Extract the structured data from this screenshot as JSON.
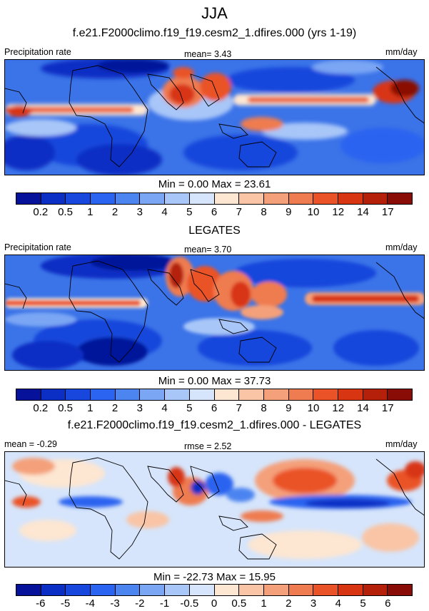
{
  "suptitle": "JJA",
  "panels": [
    {
      "title": "f.e21.F2000climo.f19_f19.cesm2_1.dfires.000 (yrs 1-19)",
      "left_label": "Precipitation rate",
      "center_label": "mean=   3.43",
      "right_label": "mm/day",
      "stats": "Min =   0.00 Max =  23.61"
    },
    {
      "title": "LEGATES",
      "left_label": "Precipitation rate",
      "center_label": "mean=   3.70",
      "right_label": "mm/day",
      "stats": "Min =   0.00 Max =  37.73"
    },
    {
      "title": "f.e21.F2000climo.f19_f19.cesm2_1.dfires.000 - LEGATES",
      "left_label": "mean = -0.29",
      "center_label": "rmse =   2.52",
      "right_label": "mm/day",
      "stats": "Min = -22.73 Max =  15.95"
    }
  ],
  "colorbar_abs": {
    "colors": [
      "#06129a",
      "#0b2ec4",
      "#1747dc",
      "#2a64f0",
      "#4c84f0",
      "#7aa6f4",
      "#a8c6f8",
      "#d6e5fb",
      "#fde6d2",
      "#f9c5a6",
      "#f4a07a",
      "#ef7b50",
      "#ea5228",
      "#d83612",
      "#b4200a",
      "#8a0c06"
    ],
    "ticks": [
      "0.2",
      "0.5",
      "1",
      "2",
      "3",
      "4",
      "5",
      "6",
      "7",
      "8",
      "9",
      "10",
      "12",
      "14",
      "17"
    ]
  },
  "colorbar_diff": {
    "colors": [
      "#06129a",
      "#0b2ec4",
      "#1747dc",
      "#2a64f0",
      "#4c84f0",
      "#7aa6f4",
      "#a8c6f8",
      "#d6e5fb",
      "#fde6d2",
      "#f9c5a6",
      "#f4a07a",
      "#ef7b50",
      "#ea5228",
      "#d83612",
      "#b4200a",
      "#8a0c06"
    ],
    "ticks": [
      "-6",
      "-5",
      "-4",
      "-3",
      "-2",
      "-1",
      "-0.5",
      "0",
      "0.5",
      "1",
      "2",
      "3",
      "4",
      "5",
      "6"
    ]
  }
}
